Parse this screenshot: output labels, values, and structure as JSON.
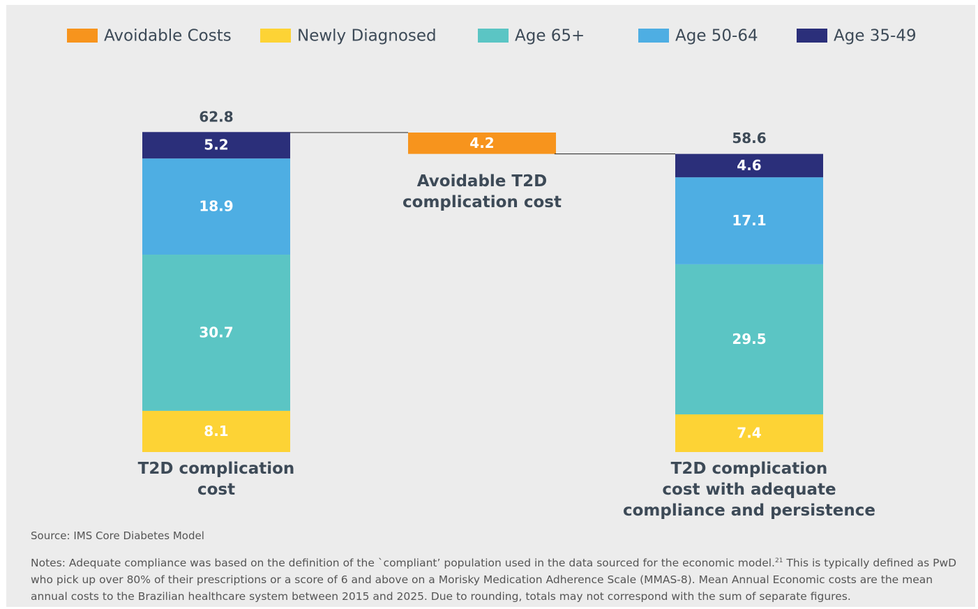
{
  "chart_data": {
    "type": "waterfall",
    "categories": [
      "T2D complication\ncost",
      "Avoidable T2D\ncomplication cost",
      "T2D complication\ncost with adequate\ncompliance and persistence"
    ],
    "series": [
      {
        "name": "Avoidable Costs",
        "color": "#f7941d",
        "values": [
          null,
          4.2,
          null
        ]
      },
      {
        "name": "Newly Diagnosed",
        "color": "#fdd335",
        "values": [
          8.1,
          null,
          7.4
        ]
      },
      {
        "name": "Age 65+",
        "color": "#5bc5c4",
        "values": [
          30.7,
          null,
          29.5
        ]
      },
      {
        "name": "Age 50-64",
        "color": "#4eaee3",
        "values": [
          18.9,
          null,
          17.1
        ]
      },
      {
        "name": "Age 35-49",
        "color": "#2b2f7a",
        "values": [
          5.2,
          null,
          4.6
        ]
      }
    ],
    "totals": [
      62.8,
      null,
      58.6
    ],
    "source": "Source: IMS Core Diabetes Model",
    "notes": {
      "text": "Notes: Adequate compliance was based on the definition of the `compliant’ population used in the data sourced for the economic model.",
      "ref": "21",
      "rest": " This is typically defined as PwD who pick up over 80% of their prescriptions or a score of 6 and above on a Morisky Medication Adherence Scale (MMAS-8). Mean Annual Economic costs are the mean annual costs to the Brazilian healthcare system between 2015 and 2025. Due to rounding, totals may not correspond with the sum of separate figures."
    }
  }
}
